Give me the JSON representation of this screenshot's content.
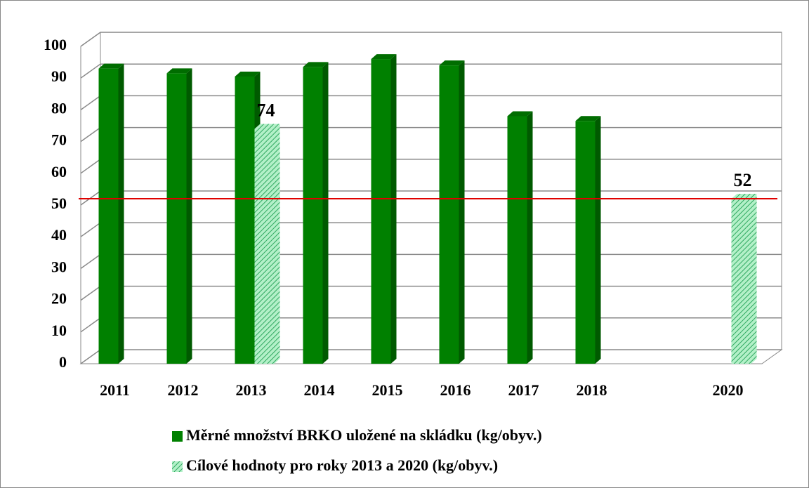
{
  "chart_data": {
    "type": "bar3d",
    "categories": [
      "2011",
      "2012",
      "2013",
      "2014",
      "2015",
      "2016",
      "2017",
      "2018",
      null,
      "2020"
    ],
    "series": [
      {
        "name": "Měrné množství BRKO uložené na skládku (kg/obyv.)",
        "color": "#008000",
        "pattern": "solid",
        "values": [
          93,
          91.5,
          90.5,
          93.5,
          96,
          94,
          78,
          76.5,
          null,
          null
        ]
      },
      {
        "name": "Cílové hodnoty pro roky 2013 a 2020 (kg/obyv.)",
        "color": "#b3f0c8",
        "pattern": "hatch",
        "values": [
          null,
          null,
          74,
          null,
          null,
          null,
          null,
          null,
          null,
          52
        ],
        "data_labels": true
      }
    ],
    "ylim": [
      0,
      100
    ],
    "yticks": [
      0,
      10,
      20,
      30,
      40,
      50,
      60,
      70,
      80,
      90,
      100
    ],
    "grid": true,
    "reference_line": {
      "value": 52,
      "color": "#e00000"
    },
    "legend": "bottom"
  }
}
